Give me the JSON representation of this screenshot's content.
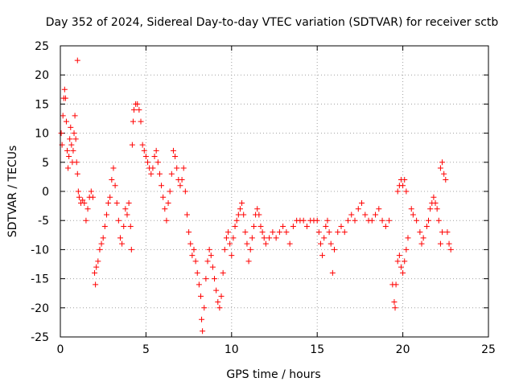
{
  "chart_data": {
    "type": "scatter",
    "title": "Day 352 of 2024, Sidereal Day-to-day VTEC variation (SDTVAR) for receiver sctb",
    "xlabel": "GPS time / hours",
    "ylabel": "SDTVAR / TECUs",
    "xlim": [
      0,
      25
    ],
    "ylim": [
      -25,
      25
    ],
    "xticks": [
      0,
      5,
      10,
      15,
      20,
      25
    ],
    "yticks": [
      25,
      20,
      15,
      10,
      5,
      0,
      -5,
      -10,
      -15,
      -20,
      -25
    ],
    "xtick_labels": [
      "0",
      "5",
      "10",
      "15",
      "20",
      "25"
    ],
    "ytick_labels": [
      "25",
      "20",
      "15",
      "10",
      "5",
      "0",
      "-5",
      "-10",
      "-15",
      "-20",
      "-25"
    ],
    "grid": true,
    "marker": "+",
    "color": "#ff0000",
    "series": [
      {
        "name": "sctb",
        "points": [
          [
            0.05,
            10
          ],
          [
            0.1,
            8
          ],
          [
            0.15,
            13
          ],
          [
            0.2,
            16
          ],
          [
            0.25,
            17.5
          ],
          [
            0.3,
            16
          ],
          [
            0.35,
            12
          ],
          [
            0.4,
            7
          ],
          [
            0.45,
            4
          ],
          [
            0.5,
            6
          ],
          [
            0.55,
            9
          ],
          [
            0.6,
            11
          ],
          [
            0.65,
            8
          ],
          [
            0.7,
            5
          ],
          [
            0.75,
            7
          ],
          [
            0.8,
            10
          ],
          [
            0.85,
            13
          ],
          [
            0.9,
            9
          ],
          [
            0.95,
            5
          ],
          [
            1.0,
            22.5
          ],
          [
            1.0,
            3
          ],
          [
            1.05,
            0
          ],
          [
            1.1,
            -1
          ],
          [
            1.2,
            -2
          ],
          [
            1.3,
            -1.5
          ],
          [
            1.4,
            -2
          ],
          [
            1.5,
            -5
          ],
          [
            1.6,
            -3
          ],
          [
            1.7,
            -1
          ],
          [
            1.8,
            0
          ],
          [
            1.9,
            -1
          ],
          [
            2.0,
            -14
          ],
          [
            2.05,
            -16
          ],
          [
            2.1,
            -13
          ],
          [
            2.2,
            -12
          ],
          [
            2.3,
            -10
          ],
          [
            2.4,
            -9
          ],
          [
            2.5,
            -8
          ],
          [
            2.6,
            -6
          ],
          [
            2.7,
            -4
          ],
          [
            2.8,
            -2
          ],
          [
            2.9,
            -1
          ],
          [
            3.0,
            2
          ],
          [
            3.1,
            4
          ],
          [
            3.2,
            1
          ],
          [
            3.3,
            -2
          ],
          [
            3.4,
            -5
          ],
          [
            3.5,
            -8
          ],
          [
            3.6,
            -9
          ],
          [
            3.7,
            -6
          ],
          [
            3.8,
            -3
          ],
          [
            3.9,
            -4
          ],
          [
            4.0,
            -2
          ],
          [
            4.1,
            -6
          ],
          [
            4.15,
            -10
          ],
          [
            4.2,
            8
          ],
          [
            4.25,
            12
          ],
          [
            4.3,
            14
          ],
          [
            4.4,
            15
          ],
          [
            4.5,
            15
          ],
          [
            4.6,
            14
          ],
          [
            4.7,
            12
          ],
          [
            4.8,
            8
          ],
          [
            4.9,
            7
          ],
          [
            5.0,
            6
          ],
          [
            5.1,
            5
          ],
          [
            5.2,
            4
          ],
          [
            5.3,
            3
          ],
          [
            5.4,
            4
          ],
          [
            5.5,
            6
          ],
          [
            5.6,
            7
          ],
          [
            5.7,
            5
          ],
          [
            5.8,
            3
          ],
          [
            5.9,
            1
          ],
          [
            6.0,
            -1
          ],
          [
            6.1,
            -3
          ],
          [
            6.2,
            -5
          ],
          [
            6.3,
            -2
          ],
          [
            6.4,
            0
          ],
          [
            6.5,
            3
          ],
          [
            6.6,
            7
          ],
          [
            6.7,
            6
          ],
          [
            6.8,
            4
          ],
          [
            6.9,
            2
          ],
          [
            7.0,
            1
          ],
          [
            7.1,
            2
          ],
          [
            7.2,
            4
          ],
          [
            7.3,
            0
          ],
          [
            7.4,
            -4
          ],
          [
            7.5,
            -7
          ],
          [
            7.6,
            -9
          ],
          [
            7.7,
            -11
          ],
          [
            7.8,
            -10
          ],
          [
            7.9,
            -12
          ],
          [
            8.0,
            -14
          ],
          [
            8.1,
            -16
          ],
          [
            8.2,
            -18
          ],
          [
            8.25,
            -22
          ],
          [
            8.3,
            -24
          ],
          [
            8.4,
            -20
          ],
          [
            8.5,
            -15
          ],
          [
            8.6,
            -12
          ],
          [
            8.7,
            -10
          ],
          [
            8.8,
            -11
          ],
          [
            8.9,
            -13
          ],
          [
            9.0,
            -15
          ],
          [
            9.1,
            -17
          ],
          [
            9.2,
            -19
          ],
          [
            9.3,
            -20
          ],
          [
            9.4,
            -18
          ],
          [
            9.5,
            -14
          ],
          [
            9.6,
            -10
          ],
          [
            9.7,
            -8
          ],
          [
            9.8,
            -7
          ],
          [
            9.9,
            -9
          ],
          [
            10.0,
            -11
          ],
          [
            10.1,
            -8
          ],
          [
            10.2,
            -6
          ],
          [
            10.3,
            -5
          ],
          [
            10.4,
            -4
          ],
          [
            10.5,
            -3
          ],
          [
            10.6,
            -2
          ],
          [
            10.7,
            -4
          ],
          [
            10.8,
            -7
          ],
          [
            10.9,
            -9
          ],
          [
            11.0,
            -12
          ],
          [
            11.1,
            -10
          ],
          [
            11.2,
            -8
          ],
          [
            11.3,
            -6
          ],
          [
            11.4,
            -4
          ],
          [
            11.5,
            -3
          ],
          [
            11.6,
            -4
          ],
          [
            11.7,
            -6
          ],
          [
            11.8,
            -7
          ],
          [
            11.9,
            -8
          ],
          [
            12.0,
            -9
          ],
          [
            12.2,
            -8
          ],
          [
            12.4,
            -7
          ],
          [
            12.6,
            -8
          ],
          [
            12.8,
            -7
          ],
          [
            13.0,
            -6
          ],
          [
            13.2,
            -7
          ],
          [
            13.4,
            -9
          ],
          [
            13.6,
            -6
          ],
          [
            13.8,
            -5
          ],
          [
            14.0,
            -5
          ],
          [
            14.2,
            -5
          ],
          [
            14.4,
            -6
          ],
          [
            14.6,
            -5
          ],
          [
            14.8,
            -5
          ],
          [
            15.0,
            -5
          ],
          [
            15.1,
            -7
          ],
          [
            15.2,
            -9
          ],
          [
            15.3,
            -11
          ],
          [
            15.4,
            -8
          ],
          [
            15.5,
            -6
          ],
          [
            15.6,
            -5
          ],
          [
            15.7,
            -7
          ],
          [
            15.8,
            -9
          ],
          [
            15.9,
            -14
          ],
          [
            16.0,
            -10
          ],
          [
            16.2,
            -7
          ],
          [
            16.4,
            -6
          ],
          [
            16.6,
            -7
          ],
          [
            16.8,
            -5
          ],
          [
            17.0,
            -4
          ],
          [
            17.2,
            -5
          ],
          [
            17.4,
            -3
          ],
          [
            17.6,
            -2
          ],
          [
            17.8,
            -4
          ],
          [
            18.0,
            -5
          ],
          [
            18.2,
            -5
          ],
          [
            18.4,
            -4
          ],
          [
            18.6,
            -3
          ],
          [
            18.8,
            -5
          ],
          [
            19.0,
            -6
          ],
          [
            19.2,
            -5
          ],
          [
            19.4,
            -16
          ],
          [
            19.5,
            -19
          ],
          [
            19.55,
            -20
          ],
          [
            19.6,
            -16
          ],
          [
            19.7,
            -12
          ],
          [
            19.8,
            -11
          ],
          [
            19.9,
            -13
          ],
          [
            20.0,
            -14
          ],
          [
            20.1,
            -12
          ],
          [
            20.2,
            -10
          ],
          [
            20.3,
            -8
          ],
          [
            19.7,
            0
          ],
          [
            19.8,
            1
          ],
          [
            19.9,
            2
          ],
          [
            20.0,
            1
          ],
          [
            20.1,
            2
          ],
          [
            20.2,
            0
          ],
          [
            20.5,
            -3
          ],
          [
            20.6,
            -4
          ],
          [
            20.8,
            -5
          ],
          [
            21.0,
            -7
          ],
          [
            21.1,
            -9
          ],
          [
            21.2,
            -8
          ],
          [
            21.4,
            -6
          ],
          [
            21.5,
            -5
          ],
          [
            21.6,
            -3
          ],
          [
            21.7,
            -2
          ],
          [
            21.8,
            -1
          ],
          [
            21.9,
            -2
          ],
          [
            22.0,
            -3
          ],
          [
            22.1,
            -5
          ],
          [
            22.2,
            -9
          ],
          [
            22.3,
            -7
          ],
          [
            22.2,
            4
          ],
          [
            22.3,
            5
          ],
          [
            22.4,
            3
          ],
          [
            22.5,
            2
          ],
          [
            22.6,
            -7
          ],
          [
            22.7,
            -9
          ],
          [
            22.8,
            -10
          ]
        ]
      }
    ]
  }
}
